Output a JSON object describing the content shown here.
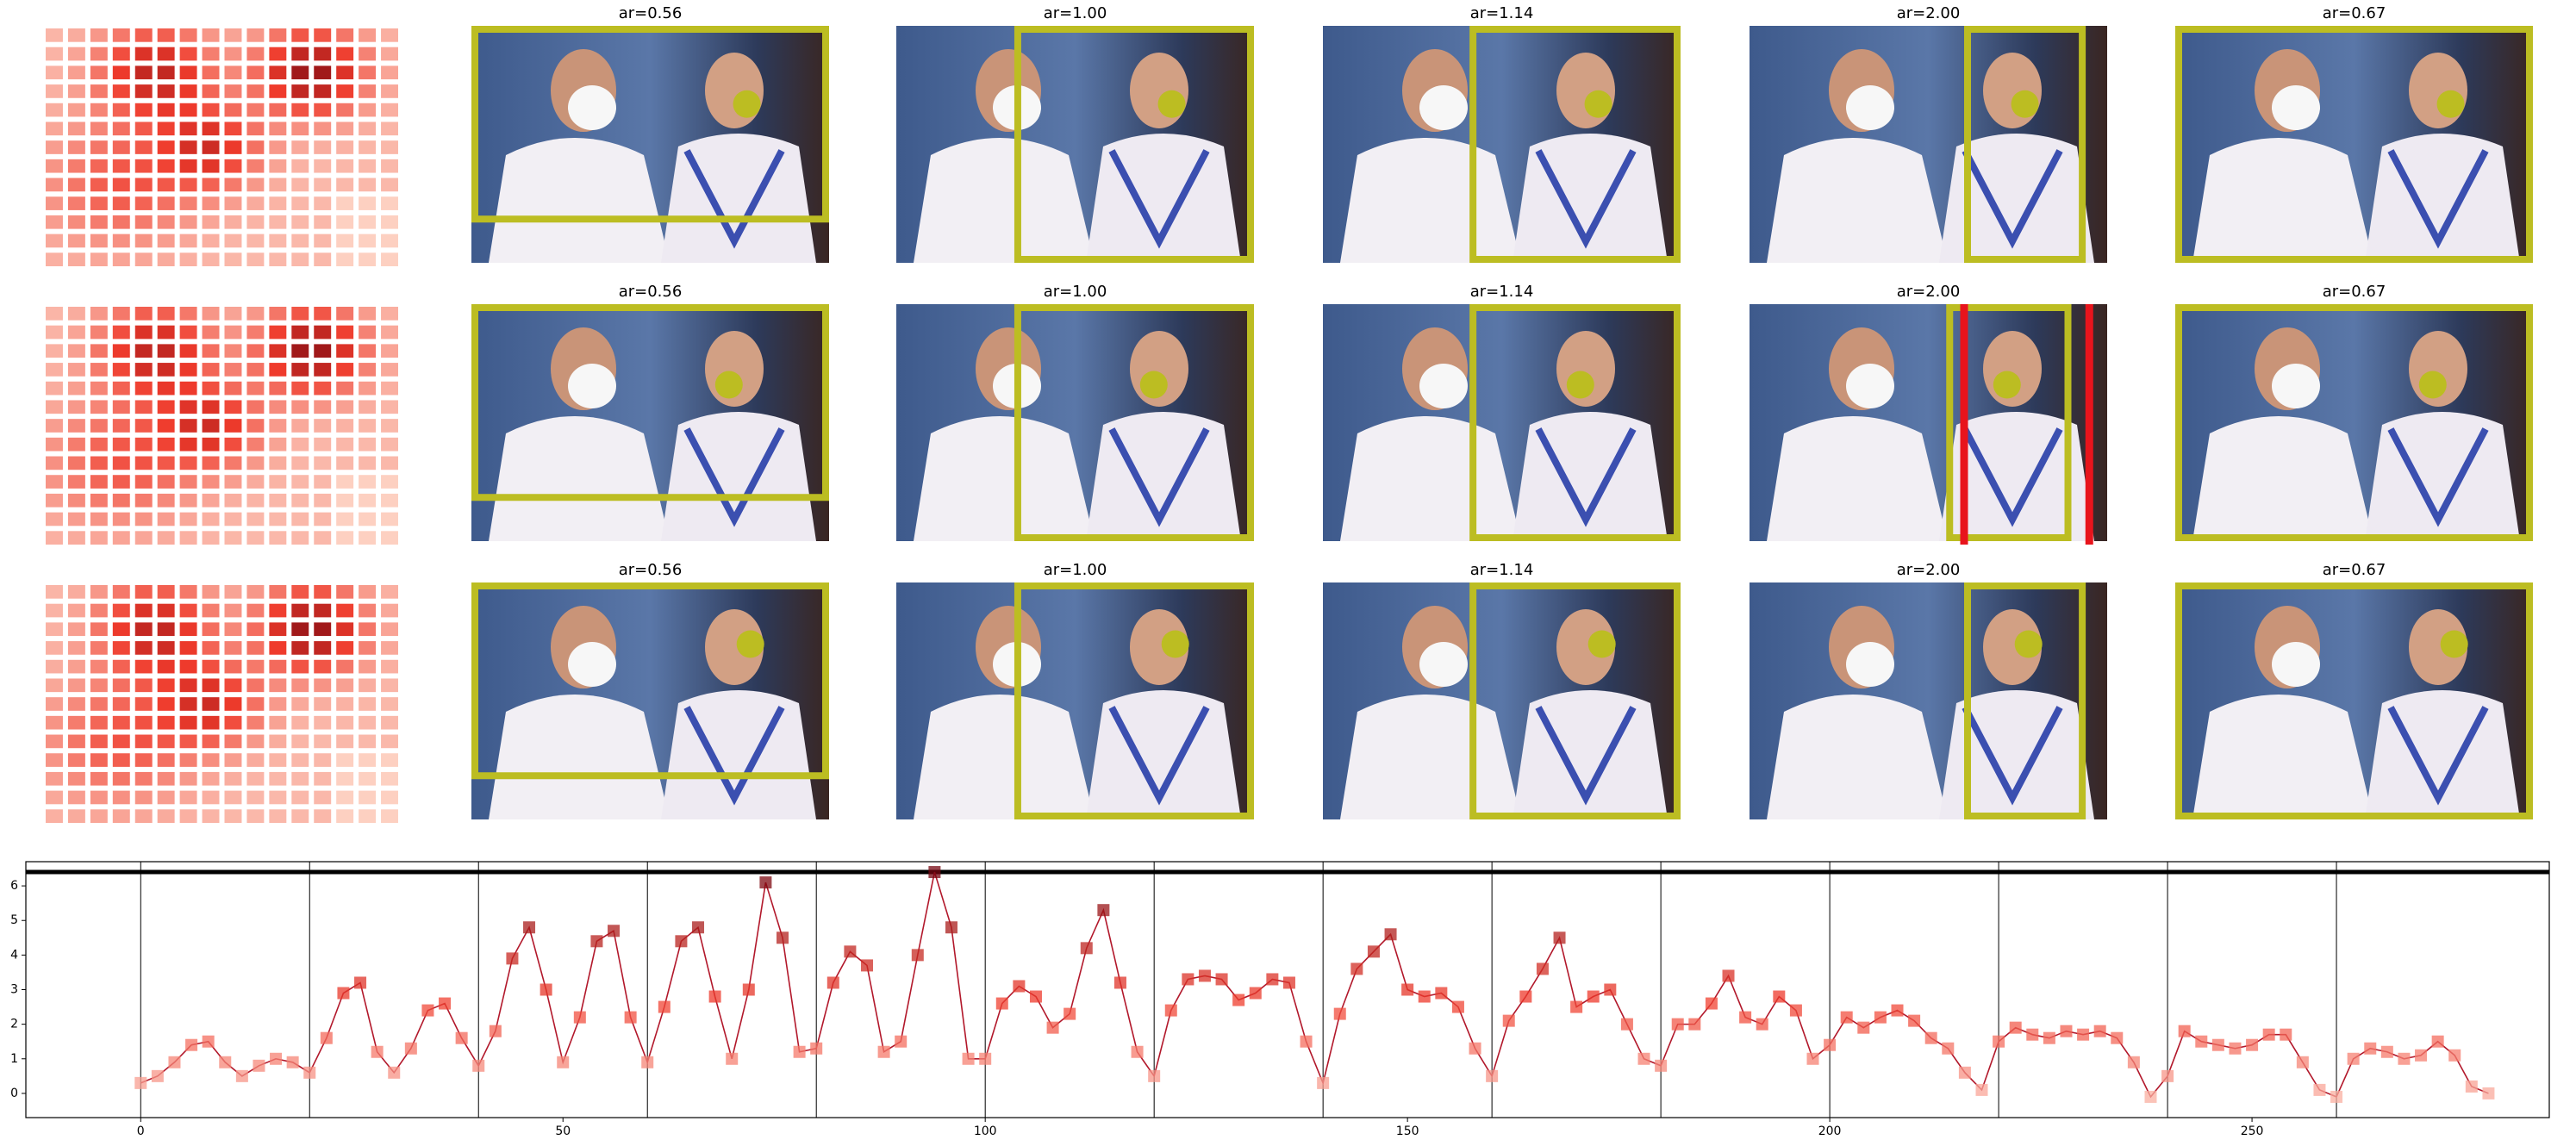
{
  "panels": {
    "titles": [
      [
        "ar=0.56",
        "ar=1.00",
        "ar=1.14",
        "ar=2.00",
        "ar=0.67"
      ],
      [
        "ar=0.56",
        "ar=1.00",
        "ar=1.14",
        "ar=2.00",
        "ar=0.67"
      ],
      [
        "ar=0.56",
        "ar=1.00",
        "ar=1.14",
        "ar=2.00",
        "ar=0.67"
      ]
    ]
  },
  "chart_data": {
    "type": "line",
    "color": "#b2182b",
    "x": [
      0,
      2,
      4,
      6,
      8,
      10,
      12,
      14,
      16,
      18,
      20,
      22,
      24,
      26,
      28,
      30,
      32,
      34,
      36,
      38,
      40,
      42,
      44,
      46,
      48,
      50,
      52,
      54,
      56,
      58,
      60,
      62,
      64,
      66,
      68,
      70,
      72,
      74,
      76,
      78,
      80,
      82,
      84,
      86,
      88,
      90,
      92,
      94,
      96,
      98,
      100,
      102,
      104,
      106,
      108,
      110,
      112,
      114,
      116,
      118,
      120,
      122,
      124,
      126,
      128,
      130,
      132,
      134,
      136,
      138,
      140,
      142,
      144,
      146,
      148,
      150,
      152,
      154,
      156,
      158,
      160,
      162,
      164,
      166,
      168,
      170,
      172,
      174,
      176,
      178,
      180,
      182,
      184,
      186,
      188,
      190,
      192,
      194,
      196,
      198,
      200,
      202,
      204,
      206,
      208,
      210,
      212,
      214,
      216,
      218,
      220,
      222,
      224,
      226,
      228,
      230,
      232,
      234,
      236,
      238,
      240,
      242,
      244,
      246,
      248,
      250,
      252,
      254,
      256,
      258,
      260,
      262,
      264,
      266,
      268,
      270,
      272,
      274,
      276,
      278
    ],
    "values": [
      0.3,
      0.5,
      0.9,
      1.4,
      1.5,
      0.9,
      0.5,
      0.8,
      1.0,
      0.9,
      0.6,
      1.6,
      2.9,
      3.2,
      1.2,
      0.6,
      1.3,
      2.4,
      2.6,
      1.6,
      0.8,
      1.8,
      3.9,
      4.8,
      3.0,
      0.9,
      2.2,
      4.4,
      4.7,
      2.2,
      0.9,
      2.5,
      4.4,
      4.8,
      2.8,
      1.0,
      3.0,
      6.1,
      4.5,
      1.2,
      1.3,
      3.2,
      4.1,
      3.7,
      1.2,
      1.5,
      4.0,
      6.4,
      4.8,
      1.0,
      1.0,
      2.6,
      3.1,
      2.8,
      1.9,
      2.3,
      4.2,
      5.3,
      3.2,
      1.2,
      0.5,
      2.4,
      3.3,
      3.4,
      3.3,
      2.7,
      2.9,
      3.3,
      3.2,
      1.5,
      0.3,
      2.3,
      3.6,
      4.1,
      4.6,
      3.0,
      2.8,
      2.9,
      2.5,
      1.3,
      0.5,
      2.1,
      2.8,
      3.6,
      4.5,
      2.5,
      2.8,
      3.0,
      2.0,
      1.0,
      0.8,
      2.0,
      2.0,
      2.6,
      3.4,
      2.2,
      2.0,
      2.8,
      2.4,
      1.0,
      1.4,
      2.2,
      1.9,
      2.2,
      2.4,
      2.1,
      1.6,
      1.3,
      0.6,
      0.1,
      1.5,
      1.9,
      1.7,
      1.6,
      1.8,
      1.7,
      1.8,
      1.6,
      0.9,
      -0.1,
      0.5,
      1.8,
      1.5,
      1.4,
      1.3,
      1.4,
      1.7,
      1.7,
      0.9,
      0.1,
      -0.1,
      1.0,
      1.3,
      1.2,
      1.0,
      1.1,
      1.5,
      1.1,
      0.2,
      0.0
    ],
    "xlim": [
      -13.6,
      285.2
    ],
    "ylim": [
      -0.7,
      6.7
    ],
    "xticks": [
      0,
      50,
      100,
      150,
      200,
      250
    ],
    "yticks": [
      0,
      1,
      2,
      3,
      4,
      5,
      6
    ],
    "vlines": [
      0,
      20,
      40,
      60,
      80,
      100,
      120,
      140,
      160,
      180,
      200,
      220,
      240,
      260
    ],
    "hlines": [
      6.4
    ]
  }
}
